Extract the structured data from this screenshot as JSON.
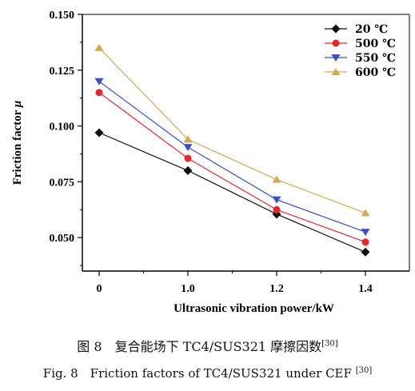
{
  "chart_data": {
    "type": "line",
    "categories": [
      "0",
      "1.0",
      "1.2",
      "1.4"
    ],
    "xlabel": "Ultrasonic vibration power/kW",
    "ylabel": "Friction factor",
    "ylabel_symbol": "μ",
    "ylim": [
      0.035,
      0.15
    ],
    "yticks": [
      "0.050",
      "0.075",
      "0.100",
      "0.125",
      "0.150"
    ],
    "ytick_values": [
      0.05,
      0.075,
      0.1,
      0.125,
      0.15
    ],
    "legend_position": "top-right",
    "grid": false,
    "series": [
      {
        "name": "20 ℃",
        "values": [
          0.097,
          0.08,
          0.0605,
          0.0435
        ],
        "color": "#111111",
        "marker": "diamond"
      },
      {
        "name": "500 ℃",
        "values": [
          0.115,
          0.0855,
          0.0625,
          0.048
        ],
        "color": "#e8262d",
        "marker": "circle"
      },
      {
        "name": "550 ℃",
        "values": [
          0.12,
          0.0905,
          0.067,
          0.0525
        ],
        "color": "#3a4fc8",
        "marker": "triangle-down"
      },
      {
        "name": "600 ℃",
        "values": [
          0.135,
          0.094,
          0.076,
          0.061
        ],
        "color": "#d8a94a",
        "marker": "triangle-up"
      }
    ]
  },
  "caption": {
    "cn_prefix": "图 8　复合能场下 TC4/SUS321 摩擦因数",
    "cn_ref": "[30]",
    "en_prefix": "Fig. 8　Friction factors of TC4/SUS321 under CEF ",
    "en_ref": "[30]"
  }
}
